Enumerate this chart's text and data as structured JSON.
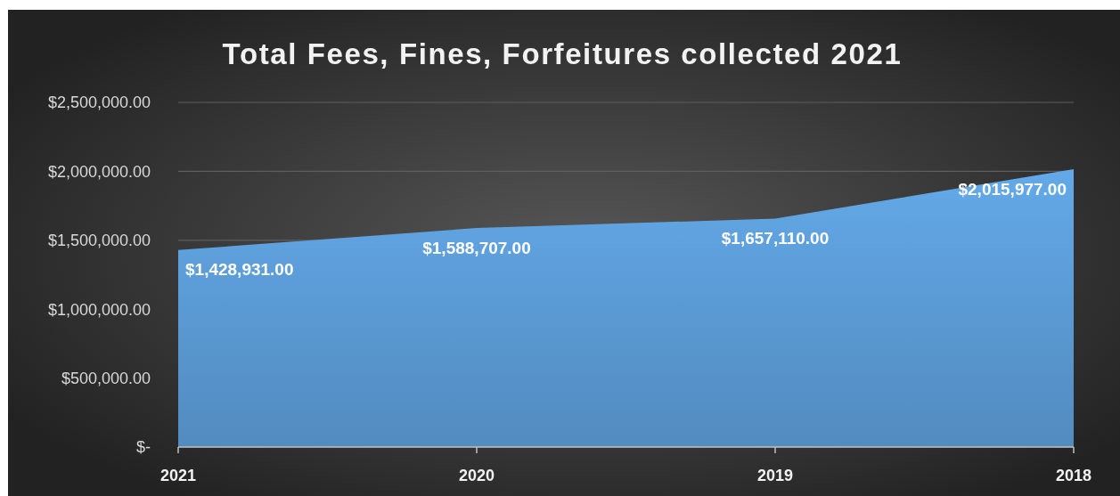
{
  "chart_data": {
    "type": "area",
    "title": "Total Fees, Fines, Forfeitures collected 2021",
    "categories": [
      "2021",
      "2020",
      "2019",
      "2018"
    ],
    "values": [
      1428931,
      1588707,
      1657110,
      2015977
    ],
    "value_labels": [
      "$1,428,931.00",
      "$1,588,707.00",
      "$1,657,110.00",
      "$2,015,977.00"
    ],
    "color": "#5b9bd5",
    "ylim": [
      0,
      2500000
    ],
    "yticks": [
      {
        "value": 0,
        "label": "$-"
      },
      {
        "value": 500000,
        "label": "$500,000.00"
      },
      {
        "value": 1000000,
        "label": "$1,000,000.00"
      },
      {
        "value": 1500000,
        "label": "$1,500,000.00"
      },
      {
        "value": 2000000,
        "label": "$2,000,000.00"
      },
      {
        "value": 2500000,
        "label": "$2,500,000.00"
      }
    ],
    "grid": "y"
  }
}
